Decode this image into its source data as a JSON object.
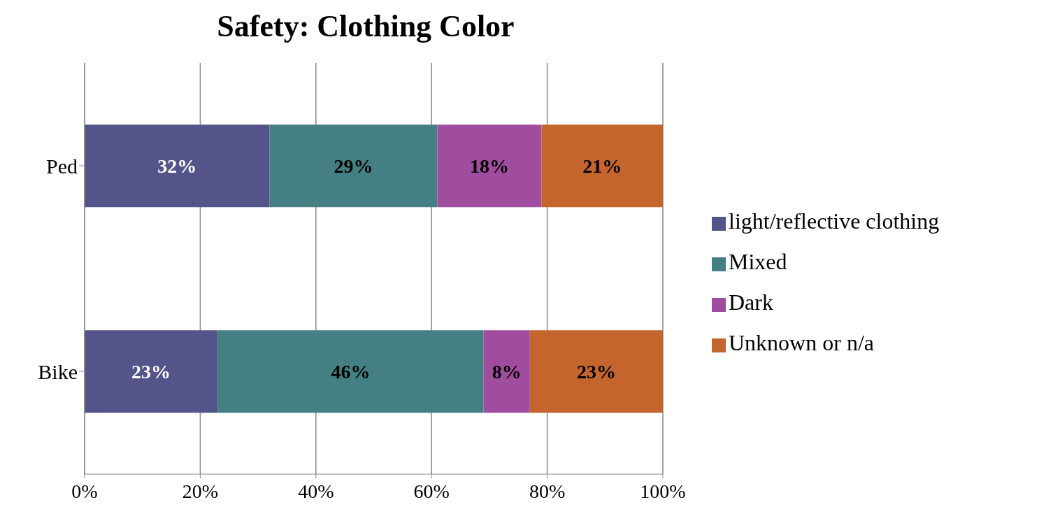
{
  "chart_data": {
    "type": "bar",
    "title": "Safety:  Clothing Color",
    "orientation": "horizontal",
    "stacked": true,
    "categories": [
      "Ped",
      "Bike"
    ],
    "series": [
      {
        "name": "light/reflective clothing",
        "color": "#55548a",
        "values": [
          32,
          23
        ],
        "value_labels": [
          "32%",
          "23%"
        ]
      },
      {
        "name": "Mixed",
        "color": "#437f83",
        "values": [
          29,
          46
        ],
        "value_labels": [
          "29%",
          "46%"
        ]
      },
      {
        "name": "Dark",
        "color": "#a04da0",
        "values": [
          18,
          8
        ],
        "value_labels": [
          "18%",
          "8%"
        ]
      },
      {
        "name": "Unknown or n/a",
        "color": "#c4652e",
        "values": [
          21,
          23
        ],
        "value_labels": [
          "21%",
          "23%"
        ]
      }
    ],
    "xlim": [
      0,
      100
    ],
    "xticks": [
      {
        "value": 0,
        "label": "0%"
      },
      {
        "value": 20,
        "label": "20%"
      },
      {
        "value": 40,
        "label": "40%"
      },
      {
        "value": 60,
        "label": "60%"
      },
      {
        "value": 80,
        "label": "80%"
      },
      {
        "value": 100,
        "label": "100%"
      }
    ],
    "grid": "x",
    "legend": "right"
  }
}
